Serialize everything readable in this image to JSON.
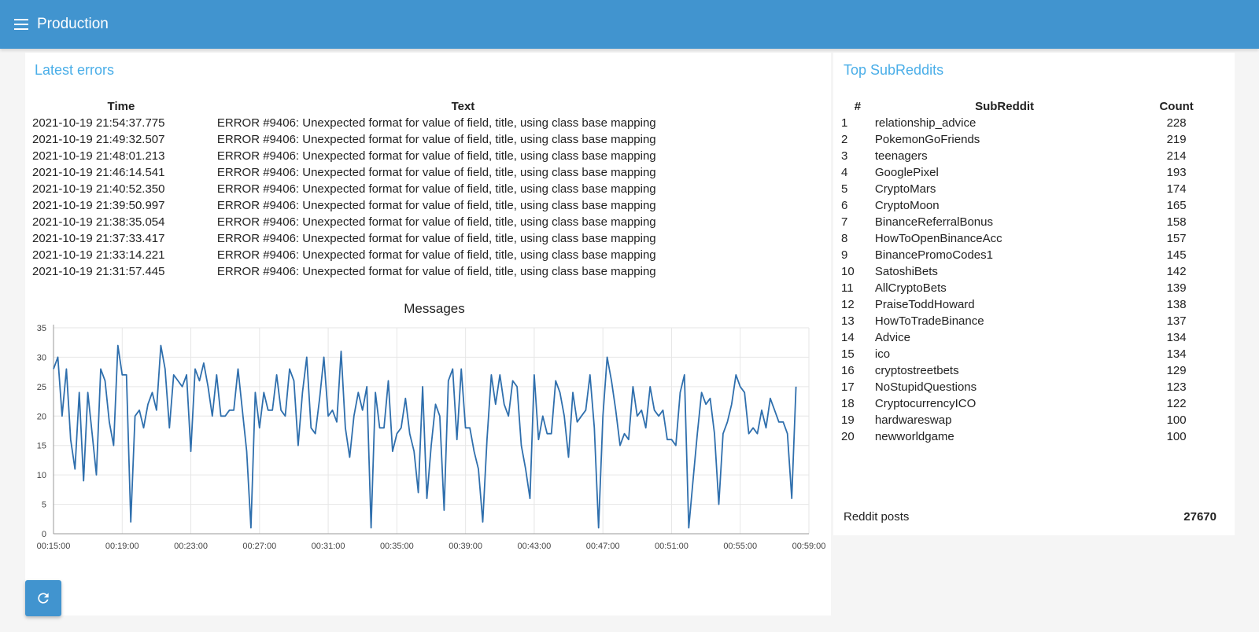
{
  "appbar": {
    "title": "Production"
  },
  "errors": {
    "title": "Latest errors",
    "columns": [
      "Time",
      "Text"
    ],
    "rows": [
      [
        "2021-10-19 21:54:37.775",
        "ERROR #9406: Unexpected format for value of field, title, using class base mapping"
      ],
      [
        "2021-10-19 21:49:32.507",
        "ERROR #9406: Unexpected format for value of field, title, using class base mapping"
      ],
      [
        "2021-10-19 21:48:01.213",
        "ERROR #9406: Unexpected format for value of field, title, using class base mapping"
      ],
      [
        "2021-10-19 21:46:14.541",
        "ERROR #9406: Unexpected format for value of field, title, using class base mapping"
      ],
      [
        "2021-10-19 21:40:52.350",
        "ERROR #9406: Unexpected format for value of field, title, using class base mapping"
      ],
      [
        "2021-10-19 21:39:50.997",
        "ERROR #9406: Unexpected format for value of field, title, using class base mapping"
      ],
      [
        "2021-10-19 21:38:35.054",
        "ERROR #9406: Unexpected format for value of field, title, using class base mapping"
      ],
      [
        "2021-10-19 21:37:33.417",
        "ERROR #9406: Unexpected format for value of field, title, using class base mapping"
      ],
      [
        "2021-10-19 21:33:14.221",
        "ERROR #9406: Unexpected format for value of field, title, using class base mapping"
      ],
      [
        "2021-10-19 21:31:57.445",
        "ERROR #9406: Unexpected format for value of field, title, using class base mapping"
      ]
    ]
  },
  "subreddits": {
    "title": "Top SubReddits",
    "columns": [
      "#",
      "SubReddit",
      "Count"
    ],
    "rows": [
      [
        "1",
        "relationship_advice",
        "228"
      ],
      [
        "2",
        "PokemonGoFriends",
        "219"
      ],
      [
        "3",
        "teenagers",
        "214"
      ],
      [
        "4",
        "GooglePixel",
        "193"
      ],
      [
        "5",
        "CryptoMars",
        "174"
      ],
      [
        "6",
        "CryptoMoon",
        "165"
      ],
      [
        "7",
        "BinanceReferralBonus",
        "158"
      ],
      [
        "8",
        "HowToOpenBinanceAcc",
        "157"
      ],
      [
        "9",
        "BinancePromoCodes1",
        "145"
      ],
      [
        "10",
        "SatoshiBets",
        "142"
      ],
      [
        "11",
        "AllCryptoBets",
        "139"
      ],
      [
        "12",
        "PraiseToddHoward",
        "138"
      ],
      [
        "13",
        "HowToTradeBinance",
        "137"
      ],
      [
        "14",
        "Advice",
        "134"
      ],
      [
        "15",
        "ico",
        "134"
      ],
      [
        "16",
        "cryptostreetbets",
        "129"
      ],
      [
        "17",
        "NoStupidQuestions",
        "123"
      ],
      [
        "18",
        "CryptocurrencyICO",
        "122"
      ],
      [
        "19",
        "hardwareswap",
        "100"
      ],
      [
        "20",
        "newworldgame",
        "100"
      ]
    ],
    "posts_label": "Reddit posts",
    "posts_value": "27670"
  },
  "colors": {
    "accent": "#4194cf",
    "title": "#4aaee8",
    "line": "#2f6fad"
  },
  "icons": {
    "menu": "menu-icon",
    "refresh": "refresh-icon"
  },
  "chart_data": {
    "type": "line",
    "title": "Messages",
    "xlabel": "",
    "ylabel": "",
    "x_tick_labels": [
      "00:15:00",
      "00:19:00",
      "00:23:00",
      "00:27:00",
      "00:31:00",
      "00:35:00",
      "00:39:00",
      "00:43:00",
      "00:47:00",
      "00:51:00",
      "00:55:00",
      "00:59:00"
    ],
    "y_ticks": [
      0,
      5,
      10,
      15,
      20,
      25,
      30,
      35
    ],
    "ylim": [
      0,
      35
    ],
    "grid": true,
    "series": [
      {
        "name": "",
        "start": "00:15:00",
        "step_seconds": 15,
        "values": [
          28,
          30,
          20,
          28,
          16,
          11,
          24,
          9,
          24,
          17,
          10,
          28,
          26,
          19,
          15,
          32,
          27,
          27,
          2,
          20,
          21,
          18,
          22,
          24,
          21,
          32,
          28,
          18,
          27,
          26,
          25,
          27,
          14,
          28,
          26,
          29,
          25,
          20,
          27,
          20,
          20,
          21,
          21,
          28,
          21,
          14,
          1,
          24,
          18,
          24,
          21,
          21,
          27,
          21,
          20,
          28,
          26,
          15,
          24,
          30,
          18,
          17,
          23,
          30,
          20,
          21,
          19,
          31,
          18,
          13,
          20,
          24,
          21,
          25,
          1,
          24,
          18,
          18,
          26,
          14,
          17,
          18,
          23,
          17,
          14,
          7,
          25,
          6,
          15,
          22,
          20,
          4,
          26,
          28,
          16,
          28,
          18,
          18,
          14,
          11,
          2,
          16,
          27,
          22,
          27,
          22,
          20,
          26,
          25,
          15,
          11,
          6,
          27,
          16,
          20,
          17,
          17,
          26,
          24,
          20,
          13,
          24,
          19,
          20,
          21,
          27,
          18,
          1,
          20,
          30,
          26,
          21,
          15,
          17,
          16,
          25,
          20,
          21,
          18,
          25,
          21,
          20,
          21,
          16,
          16,
          15,
          24,
          27,
          1,
          9,
          17,
          24,
          22,
          23,
          17,
          5,
          17,
          19,
          22,
          27,
          25,
          24,
          17,
          18,
          17,
          21,
          18,
          23,
          21,
          19,
          19,
          17,
          6,
          25
        ]
      }
    ]
  }
}
